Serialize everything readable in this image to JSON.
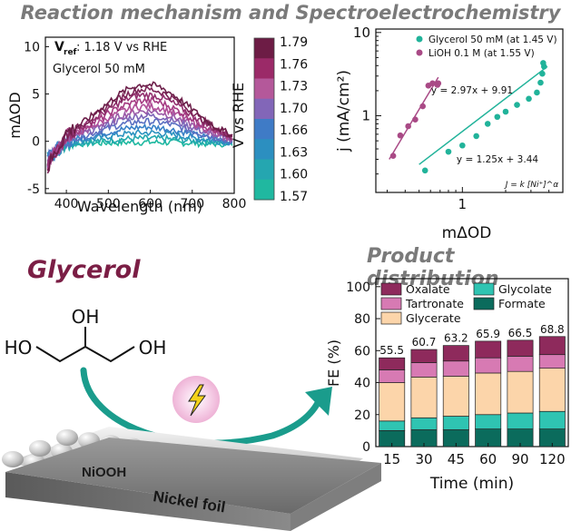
{
  "headers": {
    "main": "Reaction mechanism and Spectroelectrochemistry",
    "glycerol": "Glycerol",
    "product": "Product distribution"
  },
  "chart_data": [
    {
      "type": "line",
      "name": "spectra",
      "xlabel": "Wavelength (nm)",
      "ylabel": "mΔOD",
      "xlim": [
        350,
        800
      ],
      "ylim": [
        -5.5,
        11
      ],
      "xticks": [
        "400",
        "500",
        "600",
        "700",
        "800"
      ],
      "yticks": [
        "-5",
        "0",
        "5",
        "10"
      ],
      "annotation_vref_main": "V",
      "annotation_vref_sub": "ref",
      "annotation_vref_value": ": 1.18 V vs RHE",
      "annotation_sample": "Glycerol 50 mM",
      "colorbar_label": "V vs RHE",
      "colorbar_ticks": [
        "1.79",
        "1.76",
        "1.73",
        "1.70",
        "1.66",
        "1.63",
        "1.60",
        "1.57"
      ],
      "colorbar_colors": [
        "#6d1c45",
        "#9b2a68",
        "#b4589a",
        "#8266b8",
        "#3f7bc6",
        "#2c8fc0",
        "#25a6b0",
        "#20b8a0"
      ],
      "series": [
        {
          "potential": 1.57,
          "peak": 0.2,
          "color": "#1fb9a0"
        },
        {
          "potential": 1.6,
          "peak": 0.6,
          "color": "#23a9ae"
        },
        {
          "potential": 1.63,
          "peak": 1.2,
          "color": "#2b93bf"
        },
        {
          "potential": 1.66,
          "peak": 1.8,
          "color": "#3880c7"
        },
        {
          "potential": 1.68,
          "peak": 2.4,
          "color": "#5a70c2"
        },
        {
          "potential": 1.7,
          "peak": 3.0,
          "color": "#7c65b8"
        },
        {
          "potential": 1.72,
          "peak": 3.5,
          "color": "#9a5aa8"
        },
        {
          "potential": 1.73,
          "peak": 4.0,
          "color": "#b04f98"
        },
        {
          "potential": 1.75,
          "peak": 4.6,
          "color": "#a53b82"
        },
        {
          "potential": 1.76,
          "peak": 5.2,
          "color": "#93306f"
        },
        {
          "potential": 1.78,
          "peak": 5.8,
          "color": "#7d2558"
        },
        {
          "potential": 1.79,
          "peak": 6.3,
          "color": "#6b1d48"
        }
      ]
    },
    {
      "type": "scatter",
      "name": "kinetics",
      "xlabel": "mΔOD",
      "ylabel": "j (mA/cm²)",
      "xscale": "log",
      "yscale": "log",
      "xlim": [
        0.25,
        5
      ],
      "ylim": [
        0.12,
        11
      ],
      "xticks": [
        "1"
      ],
      "yticks": [
        "1",
        "10"
      ],
      "equation_label": "J = k [Ni⁺]^α",
      "series": [
        {
          "name": "Glycerol 50 mM (at 1.45 V)",
          "color": "#21b39a",
          "fit_label": "y = 1.25x + 3.44",
          "x": [
            0.55,
            0.8,
            1.0,
            1.25,
            1.5,
            1.75,
            2.0,
            2.4,
            2.9,
            3.3,
            3.5,
            3.6,
            3.7,
            3.65
          ],
          "y": [
            0.22,
            0.37,
            0.44,
            0.57,
            0.8,
            0.97,
            1.12,
            1.35,
            1.6,
            1.9,
            2.5,
            3.2,
            3.9,
            4.3
          ],
          "fit_x": [
            0.5,
            3.9
          ],
          "fit_y": [
            0.26,
            3.9
          ]
        },
        {
          "name": "LiOH 0.1 M (at 1.55 V)",
          "color": "#a94a86",
          "fit_label": "y = 2.97x + 9.91",
          "x": [
            0.33,
            0.37,
            0.42,
            0.47,
            0.53,
            0.58,
            0.62,
            0.67,
            0.68
          ],
          "y": [
            0.33,
            0.58,
            0.75,
            0.9,
            1.3,
            2.3,
            2.45,
            2.35,
            2.45
          ],
          "fit_x": [
            0.31,
            0.68
          ],
          "fit_y": [
            0.3,
            2.9
          ]
        }
      ]
    },
    {
      "type": "bar",
      "name": "product-distribution",
      "xlabel": "Time (min)",
      "ylabel": "FE (%)",
      "ylim": [
        0,
        105
      ],
      "yticks": [
        "0",
        "20",
        "40",
        "60",
        "80",
        "100"
      ],
      "categories": [
        "15",
        "30",
        "45",
        "60",
        "90",
        "120"
      ],
      "totals_labels": [
        "55.5",
        "60.7",
        "63.2",
        "65.9",
        "66.5",
        "68.8"
      ],
      "series": [
        {
          "name": "Formate",
          "color": "#0b6b5c",
          "values": [
            10,
            10.5,
            10.5,
            11,
            11,
            11
          ]
        },
        {
          "name": "Glycolate",
          "color": "#2fc4b2",
          "values": [
            6,
            7.5,
            8.5,
            9,
            10,
            11
          ]
        },
        {
          "name": "Glycerate",
          "color": "#fcd5aa",
          "values": [
            24,
            25.5,
            25,
            26,
            26,
            27
          ]
        },
        {
          "name": "Tartronate",
          "color": "#d77ab3",
          "values": [
            8,
            9,
            9.5,
            9.5,
            9.5,
            8.5
          ]
        },
        {
          "name": "Oxalate",
          "color": "#8e2a5c",
          "values": [
            7.5,
            8.2,
            9.7,
            10.4,
            10,
            11.3
          ]
        }
      ],
      "legend_order": [
        "Oxalate",
        "Tartronate",
        "Glycerate",
        "Glycolate",
        "Formate"
      ]
    }
  ],
  "scheme": {
    "atom_oh_top": "OH",
    "atom_ho_left": "HO",
    "atom_oh_right": "OH",
    "layer_top": "NiOOH",
    "layer_bottom": "Nickel foil",
    "lightning_icon": "lightning-bolt-icon",
    "arrow_color": "#1a9c8c"
  }
}
